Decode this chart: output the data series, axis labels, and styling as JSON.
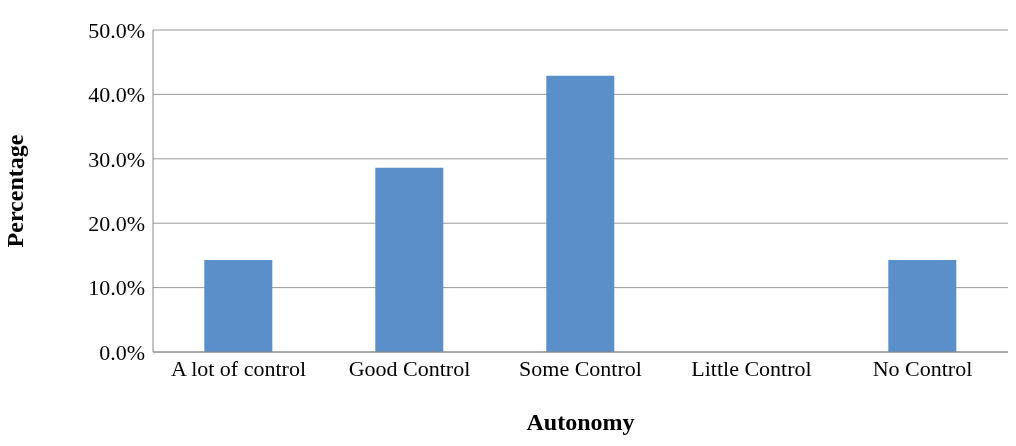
{
  "chart_data": {
    "type": "bar",
    "xlabel": "Autonomy",
    "ylabel": "Percentage",
    "categories": [
      "A lot of control",
      "Good Control",
      "Some Control",
      "Little Control",
      "No Control"
    ],
    "values": [
      14.3,
      28.6,
      42.9,
      0,
      14.3
    ],
    "color": "#5b8fc9",
    "ylim": [
      0,
      50
    ],
    "yticks": [
      {
        "value": 0,
        "label": "0.0%"
      },
      {
        "value": 10,
        "label": "10.0%"
      },
      {
        "value": 20,
        "label": "20.0%"
      },
      {
        "value": 30,
        "label": "30.0%"
      },
      {
        "value": 40,
        "label": "40.0%"
      },
      {
        "value": 50,
        "label": "50.0%"
      }
    ],
    "grid": "y"
  }
}
